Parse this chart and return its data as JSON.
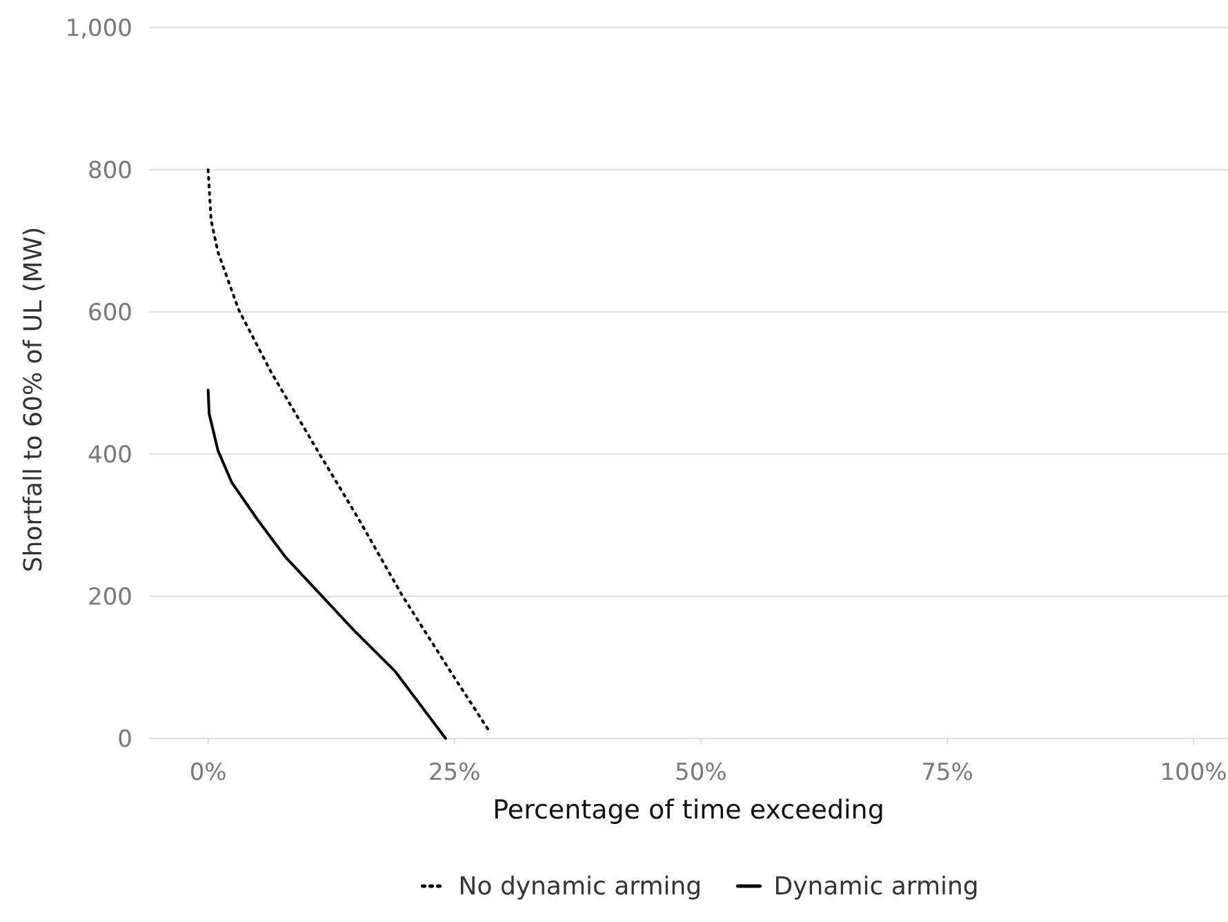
{
  "chart_data": {
    "type": "line",
    "xlabel": "Percentage of time exceeding",
    "ylabel": "Shortfall to 60% of UL (MW)",
    "xlim": [
      -6,
      103.5
    ],
    "ylim": [
      0,
      1000
    ],
    "xticks": [
      {
        "value": 0,
        "label": "0%"
      },
      {
        "value": 25,
        "label": "25%"
      },
      {
        "value": 50,
        "label": "50%"
      },
      {
        "value": 75,
        "label": "75%"
      },
      {
        "value": 100,
        "label": "100%"
      }
    ],
    "yticks": [
      0,
      200,
      400,
      600,
      800,
      {
        "value": 1000,
        "label": "1,000"
      }
    ],
    "grid": "y",
    "legend": "bottom",
    "series": [
      {
        "name": "No dynamic arming",
        "color": "#000000",
        "line_style": "dotted",
        "x": [
          0,
          0.3,
          1.0,
          3.1,
          6.4,
          11.1,
          15.3,
          19.7,
          24.6,
          28.4
        ],
        "values": [
          800,
          729,
          684,
          603,
          515,
          405,
          308,
          201,
          94,
          13
        ]
      },
      {
        "name": "Dynamic arming",
        "color": "#000000",
        "line_style": "solid",
        "x": [
          0,
          0.1,
          1.0,
          2.4,
          5.0,
          7.8,
          11.3,
          14.8,
          19.0,
          24.1
        ],
        "values": [
          490,
          457,
          405,
          360,
          308,
          256,
          204,
          152,
          94,
          0
        ]
      }
    ]
  }
}
